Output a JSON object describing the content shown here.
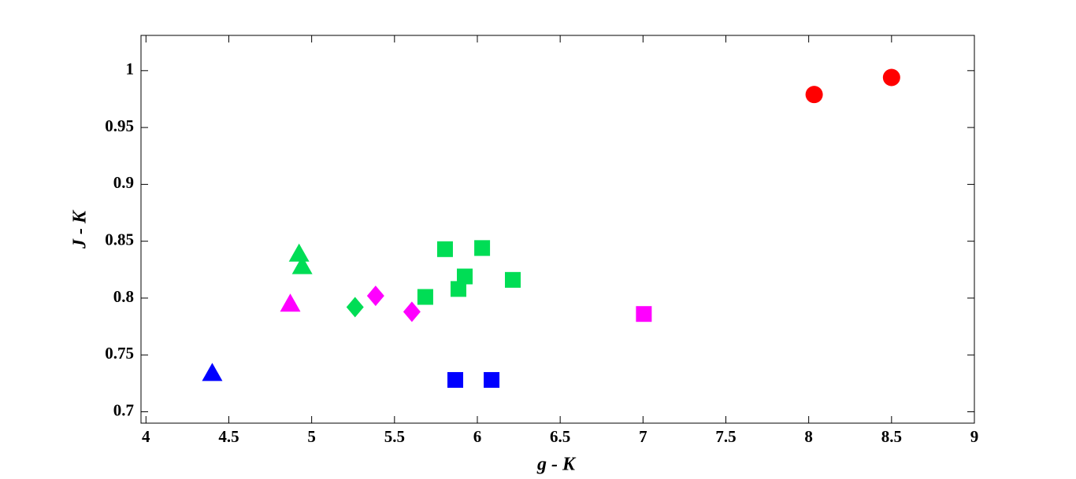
{
  "chart_data": {
    "type": "scatter",
    "xlabel": "g - K",
    "ylabel": "J - K",
    "xlim": [
      3.97,
      9
    ],
    "ylim": [
      0.69,
      1.031
    ],
    "xticks": [
      4,
      4.5,
      5,
      5.5,
      6,
      6.5,
      7,
      7.5,
      8,
      8.5,
      9
    ],
    "yticks": [
      0.7,
      0.75,
      0.8,
      0.85,
      0.9,
      0.95,
      1
    ],
    "grid": false,
    "series": [
      {
        "color": "#ff0000",
        "marker": "circle",
        "x": [
          8.033,
          8.5
        ],
        "values": [
          0.979,
          0.994
        ]
      },
      {
        "color": "#ff00ff",
        "marker": "square",
        "x": [
          7.005
        ],
        "values": [
          0.786
        ]
      },
      {
        "color": "#ff00ff",
        "marker": "triangle",
        "x": [
          4.871
        ],
        "values": [
          0.795
        ]
      },
      {
        "color": "#ff00ff",
        "marker": "diamond",
        "x": [
          5.386,
          5.605
        ],
        "values": [
          0.802,
          0.788
        ]
      },
      {
        "color": "#00dd55",
        "marker": "triangle",
        "x": [
          4.924,
          4.943
        ],
        "values": [
          0.839,
          0.828
        ]
      },
      {
        "color": "#00dd55",
        "marker": "diamond",
        "x": [
          5.262
        ],
        "values": [
          0.792
        ]
      },
      {
        "color": "#00dd55",
        "marker": "square",
        "x": [
          5.805,
          6.029,
          5.924,
          5.886,
          5.686,
          6.214
        ],
        "values": [
          0.843,
          0.844,
          0.819,
          0.808,
          0.801,
          0.816
        ]
      },
      {
        "color": "#0000ff",
        "marker": "triangle",
        "x": [
          4.4
        ],
        "values": [
          0.734
        ]
      },
      {
        "color": "#0000ff",
        "marker": "square",
        "x": [
          5.867,
          6.086
        ],
        "values": [
          0.728,
          0.728
        ]
      }
    ]
  }
}
